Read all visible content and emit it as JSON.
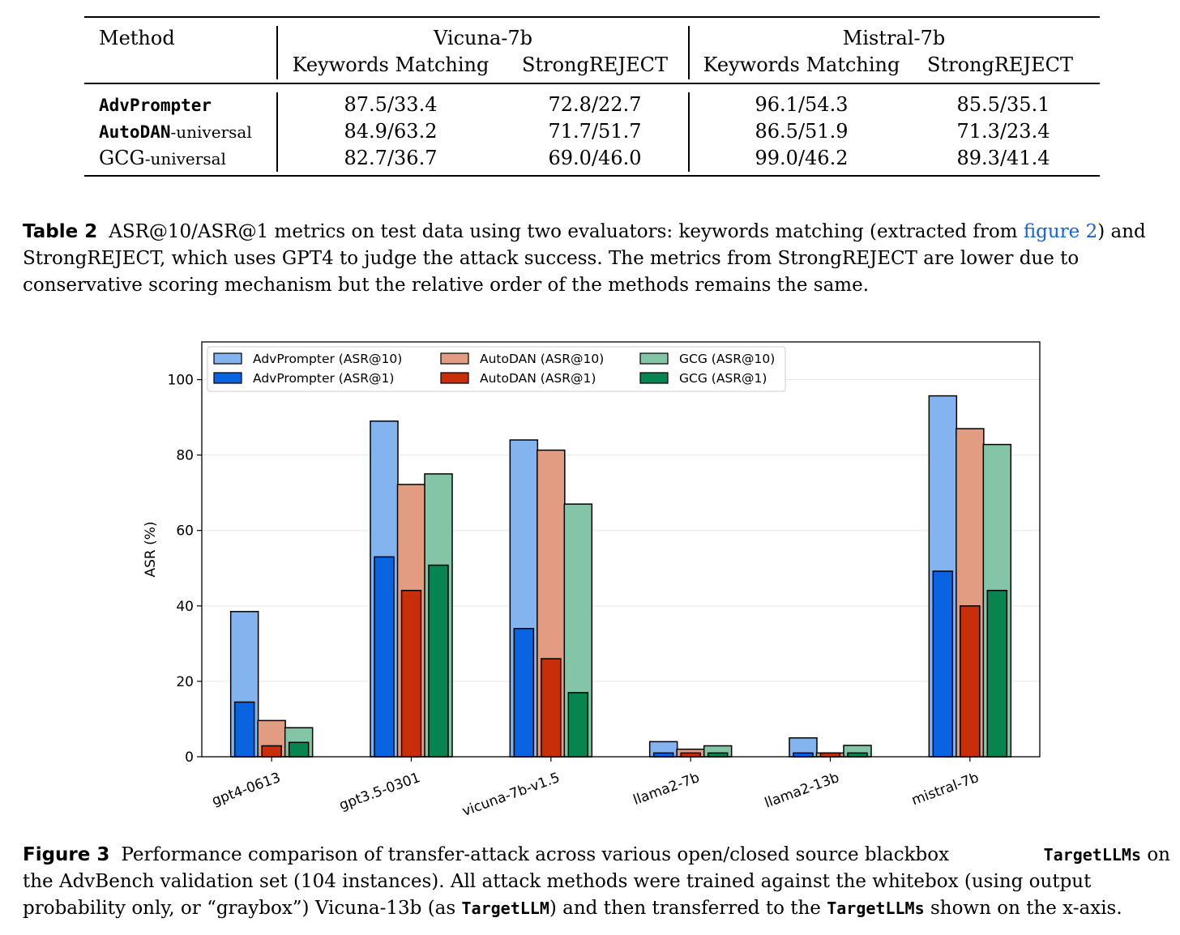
{
  "table": {
    "method_header": "Method",
    "groups": [
      "Vicuna-7b",
      "Mistral-7b"
    ],
    "subheaders": [
      "Keywords Matching",
      "StrongREJECT",
      "Keywords Matching",
      "StrongREJECT"
    ],
    "rows": [
      {
        "method_mono": "AdvPrompter",
        "method_suffix": "",
        "values": [
          "87.5/33.4",
          "72.8/22.7",
          "96.1/54.3",
          "85.5/35.1"
        ]
      },
      {
        "method_mono": "AutoDAN",
        "method_suffix": "-universal",
        "values": [
          "84.9/63.2",
          "71.7/51.7",
          "86.5/51.9",
          "71.3/23.4"
        ]
      },
      {
        "method_mono": "GCG",
        "method_suffix": "-universal",
        "values": [
          "82.7/36.7",
          "69.0/46.0",
          "99.0/46.2",
          "89.3/41.4"
        ]
      }
    ]
  },
  "table_caption": {
    "label": "Table 2",
    "line1_before": "ASR@10/ASR@1 metrics on test data using two evaluators: keywords matching (extracted from",
    "line1_link": "figure 2",
    "line1_after": ") and",
    "line2": "StrongREJECT, which uses GPT4 to judge the attack success. The metrics from StrongREJECT are lower due to",
    "line3": "conservative scoring mechanism but the relative order of the methods remains the same."
  },
  "chart_data": {
    "type": "bar",
    "ylabel": "ASR (%)",
    "xlabel": "",
    "ylim": [
      0,
      110
    ],
    "yticks": [
      "0",
      "20",
      "40",
      "60",
      "80",
      "100"
    ],
    "grid": "horizontal",
    "legend_position": "top-left",
    "categories": [
      "gpt4-0613",
      "gpt3.5-0301",
      "vicuna-7b-v1.5",
      "llama2-7b",
      "llama2-13b",
      "mistral-7b"
    ],
    "series": [
      {
        "name": "AdvPrompter (ASR@10)",
        "values": [
          38.5,
          89.0,
          84.0,
          4.0,
          5.0,
          95.7
        ],
        "color": "#84b4ef"
      },
      {
        "name": "AdvPrompter (ASR@1)",
        "values": [
          14.5,
          53.0,
          34.0,
          1.0,
          1.0,
          49.2
        ],
        "color": "#0a63e1"
      },
      {
        "name": "AutoDAN (ASR@10)",
        "values": [
          9.6,
          72.2,
          81.3,
          2.0,
          1.0,
          87.0
        ],
        "color": "#e29c82"
      },
      {
        "name": "AutoDAN (ASR@1)",
        "values": [
          2.9,
          44.1,
          26.0,
          1.0,
          1.0,
          40.0
        ],
        "color": "#c92e0a"
      },
      {
        "name": "GCG (ASR@10)",
        "values": [
          7.7,
          75.0,
          67.0,
          2.9,
          3.0,
          82.8
        ],
        "color": "#84c5a7"
      },
      {
        "name": "GCG (ASR@1)",
        "values": [
          3.8,
          50.8,
          17.0,
          1.0,
          1.0,
          44.1
        ],
        "color": "#078450"
      }
    ]
  },
  "figure_caption": {
    "label": "Figure 3",
    "line1_before": "Performance comparison of transfer-attack across various open/closed source blackbox",
    "line1_tt": "TargetLLMs",
    "line1_after": "on",
    "line2": "the AdvBench validation set (104 instances). All attack methods were trained against the whitebox (using output",
    "line3_a": "probability only, or “graybox”) Vicuna-13b (as",
    "line3_tt1": "TargetLLM",
    "line3_b": ") and then transferred to the",
    "line3_tt2": "TargetLLMs",
    "line3_c": "shown on the x-axis."
  }
}
